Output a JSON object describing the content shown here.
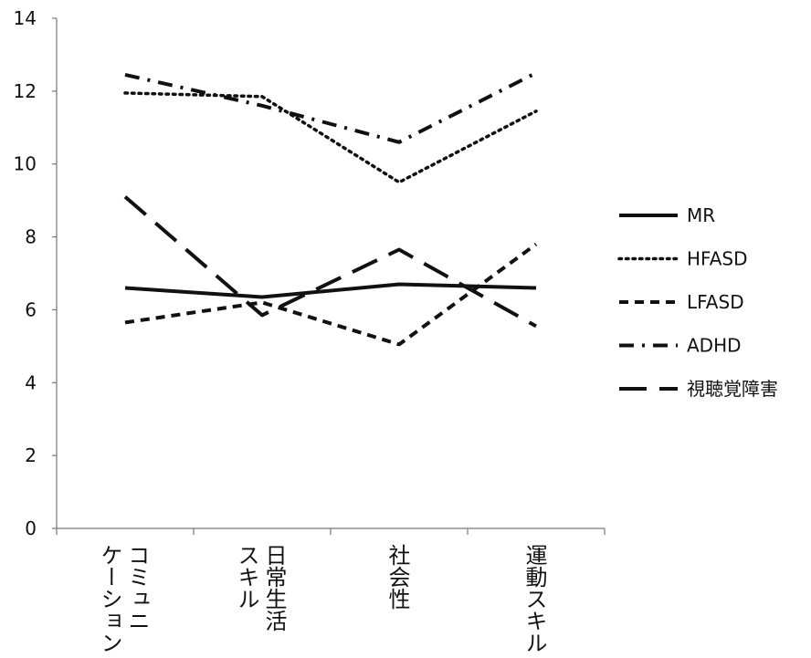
{
  "chart_data": {
    "type": "line",
    "categories": [
      "コミュニケーション",
      "日常生活スキル",
      "社会性",
      "運動スキル"
    ],
    "category_label_columns": [
      [
        "コミュニ",
        "ケーション"
      ],
      [
        "日常生活",
        "スキル"
      ],
      [
        "社会性"
      ],
      [
        "運動スキル"
      ]
    ],
    "y_ticks": [
      "0",
      "2",
      "4",
      "6",
      "8",
      "10",
      "12",
      "14"
    ],
    "ylim": [
      0,
      14
    ],
    "grid": false,
    "legend_position": "right",
    "series": [
      {
        "name": "MR",
        "values": [
          6.6,
          6.35,
          6.7,
          6.6
        ],
        "dash": "solid",
        "color": "#111111"
      },
      {
        "name": "HFASD",
        "values": [
          11.95,
          11.85,
          9.5,
          11.45
        ],
        "dash": "dotted",
        "color": "#111111"
      },
      {
        "name": "LFASD",
        "values": [
          5.65,
          6.2,
          5.05,
          7.8
        ],
        "dash": "short-dash",
        "color": "#111111"
      },
      {
        "name": "ADHD",
        "values": [
          12.45,
          11.6,
          10.6,
          12.5
        ],
        "dash": "dash-dot",
        "color": "#111111"
      },
      {
        "name": "視聴覚障害",
        "values": [
          9.1,
          5.85,
          7.65,
          5.55
        ],
        "dash": "long-dash",
        "color": "#111111"
      }
    ]
  }
}
